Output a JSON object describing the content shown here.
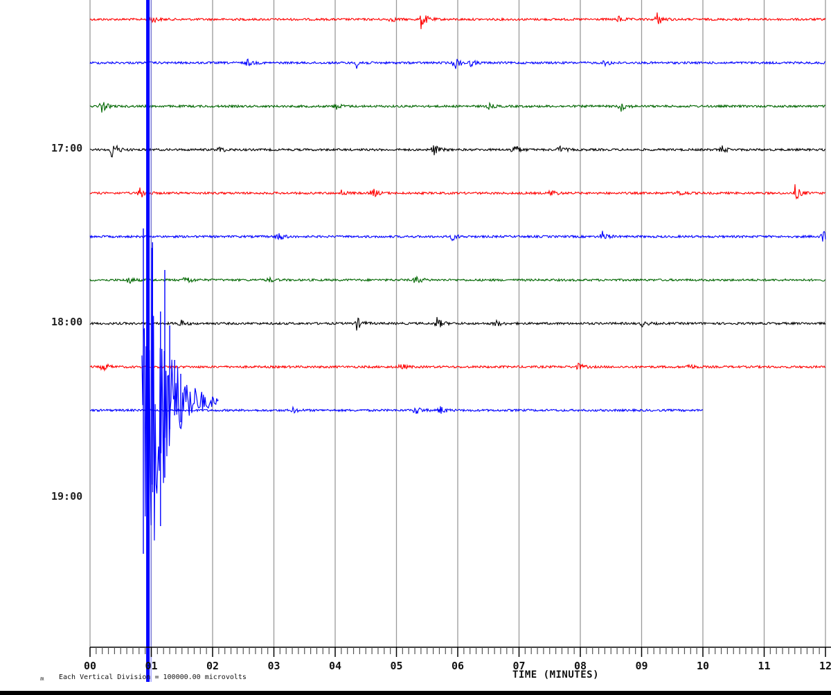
{
  "chart_data": {
    "type": "line",
    "title": "",
    "subtitle": "",
    "xlabel": "TIME (MINUTES)",
    "ylabel": "",
    "scale_note": "Each Vertical Division = 100000.00 microvolts",
    "corner_mark": "ʍ",
    "x_ticks": [
      "00",
      "01",
      "02",
      "03",
      "04",
      "05",
      "06",
      "07",
      "08",
      "09",
      "10",
      "11",
      "12"
    ],
    "x_minor_ticks_per_minute": 10,
    "xlim": [
      0,
      12
    ],
    "hour_labels": [
      {
        "label": "17:00",
        "trace_index": 3
      },
      {
        "label": "18:00",
        "trace_index": 7
      },
      {
        "label": "19:00",
        "trace_index": 11
      }
    ],
    "grid": {
      "vertical_lines_every_minute": true,
      "color": "#999999"
    },
    "trace_spacing_px": 62.75,
    "first_trace_y": 28,
    "traces": [
      {
        "index": 0,
        "color": "#ff0000",
        "end_minute": 12,
        "events": [
          [
            5.4,
            14
          ],
          [
            4.9,
            4
          ],
          [
            9.25,
            10
          ],
          [
            8.6,
            6
          ],
          [
            1.0,
            6
          ]
        ]
      },
      {
        "index": 1,
        "color": "#0000ff",
        "end_minute": 12,
        "events": [
          [
            5.95,
            10
          ],
          [
            4.35,
            7
          ],
          [
            2.55,
            6
          ],
          [
            8.4,
            5
          ],
          [
            6.2,
            5
          ]
        ]
      },
      {
        "index": 2,
        "color": "#006600",
        "end_minute": 12,
        "events": [
          [
            0.18,
            10
          ],
          [
            8.65,
            8
          ],
          [
            4.0,
            5
          ],
          [
            6.5,
            4
          ]
        ]
      },
      {
        "index": 3,
        "color": "#000000",
        "end_minute": 12,
        "events": [
          [
            0.35,
            16
          ],
          [
            5.6,
            9
          ],
          [
            6.9,
            10
          ],
          [
            7.65,
            6
          ],
          [
            2.1,
            5
          ],
          [
            10.3,
            6
          ]
        ]
      },
      {
        "index": 4,
        "color": "#ff0000",
        "end_minute": 12,
        "events": [
          [
            0.8,
            10
          ],
          [
            4.6,
            8
          ],
          [
            7.5,
            7
          ],
          [
            11.5,
            12
          ],
          [
            4.1,
            4
          ],
          [
            9.6,
            5
          ]
        ]
      },
      {
        "index": 5,
        "color": "#0000ff",
        "end_minute": 12,
        "events": [
          [
            3.05,
            9
          ],
          [
            5.9,
            6
          ],
          [
            8.35,
            8
          ],
          [
            11.95,
            10
          ]
        ]
      },
      {
        "index": 6,
        "color": "#006600",
        "end_minute": 12,
        "events": [
          [
            0.6,
            7
          ],
          [
            1.55,
            8
          ],
          [
            5.3,
            8
          ],
          [
            2.9,
            4
          ]
        ]
      },
      {
        "index": 7,
        "color": "#000000",
        "end_minute": 12,
        "events": [
          [
            4.35,
            9
          ],
          [
            5.65,
            10
          ],
          [
            1.45,
            7
          ],
          [
            6.6,
            6
          ],
          [
            9.0,
            4
          ]
        ]
      },
      {
        "index": 8,
        "color": "#ff0000",
        "end_minute": 12,
        "events": [
          [
            0.2,
            8
          ],
          [
            5.05,
            6
          ],
          [
            7.95,
            6
          ],
          [
            9.75,
            5
          ]
        ]
      },
      {
        "index": 9,
        "color": "#0000ff",
        "end_minute": 10,
        "events": [
          [
            5.3,
            8
          ],
          [
            5.7,
            7
          ],
          [
            3.3,
            4
          ]
        ]
      }
    ],
    "quake": {
      "color": "#0000ff",
      "onset_minute": 0.88,
      "description": "Large earthquake arrival beginning ~00.9 min, clipped amplitude spanning from top of plot to axis, coda decaying by ~02 min on last trace",
      "main_x_minute": 0.95,
      "coda_end_minute": 2.1
    }
  },
  "axis": {
    "minute_labels": [
      "00",
      "01",
      "02",
      "03",
      "04",
      "05",
      "06",
      "07",
      "08",
      "09",
      "10",
      "11",
      "12"
    ],
    "title": "TIME (MINUTES)"
  },
  "footer": {
    "scale_note": "Each Vertical Division = 100000.00 microvolts",
    "corner_mark": "ʍ"
  },
  "hours": {
    "h17": "17:00",
    "h18": "18:00",
    "h19": "19:00"
  }
}
